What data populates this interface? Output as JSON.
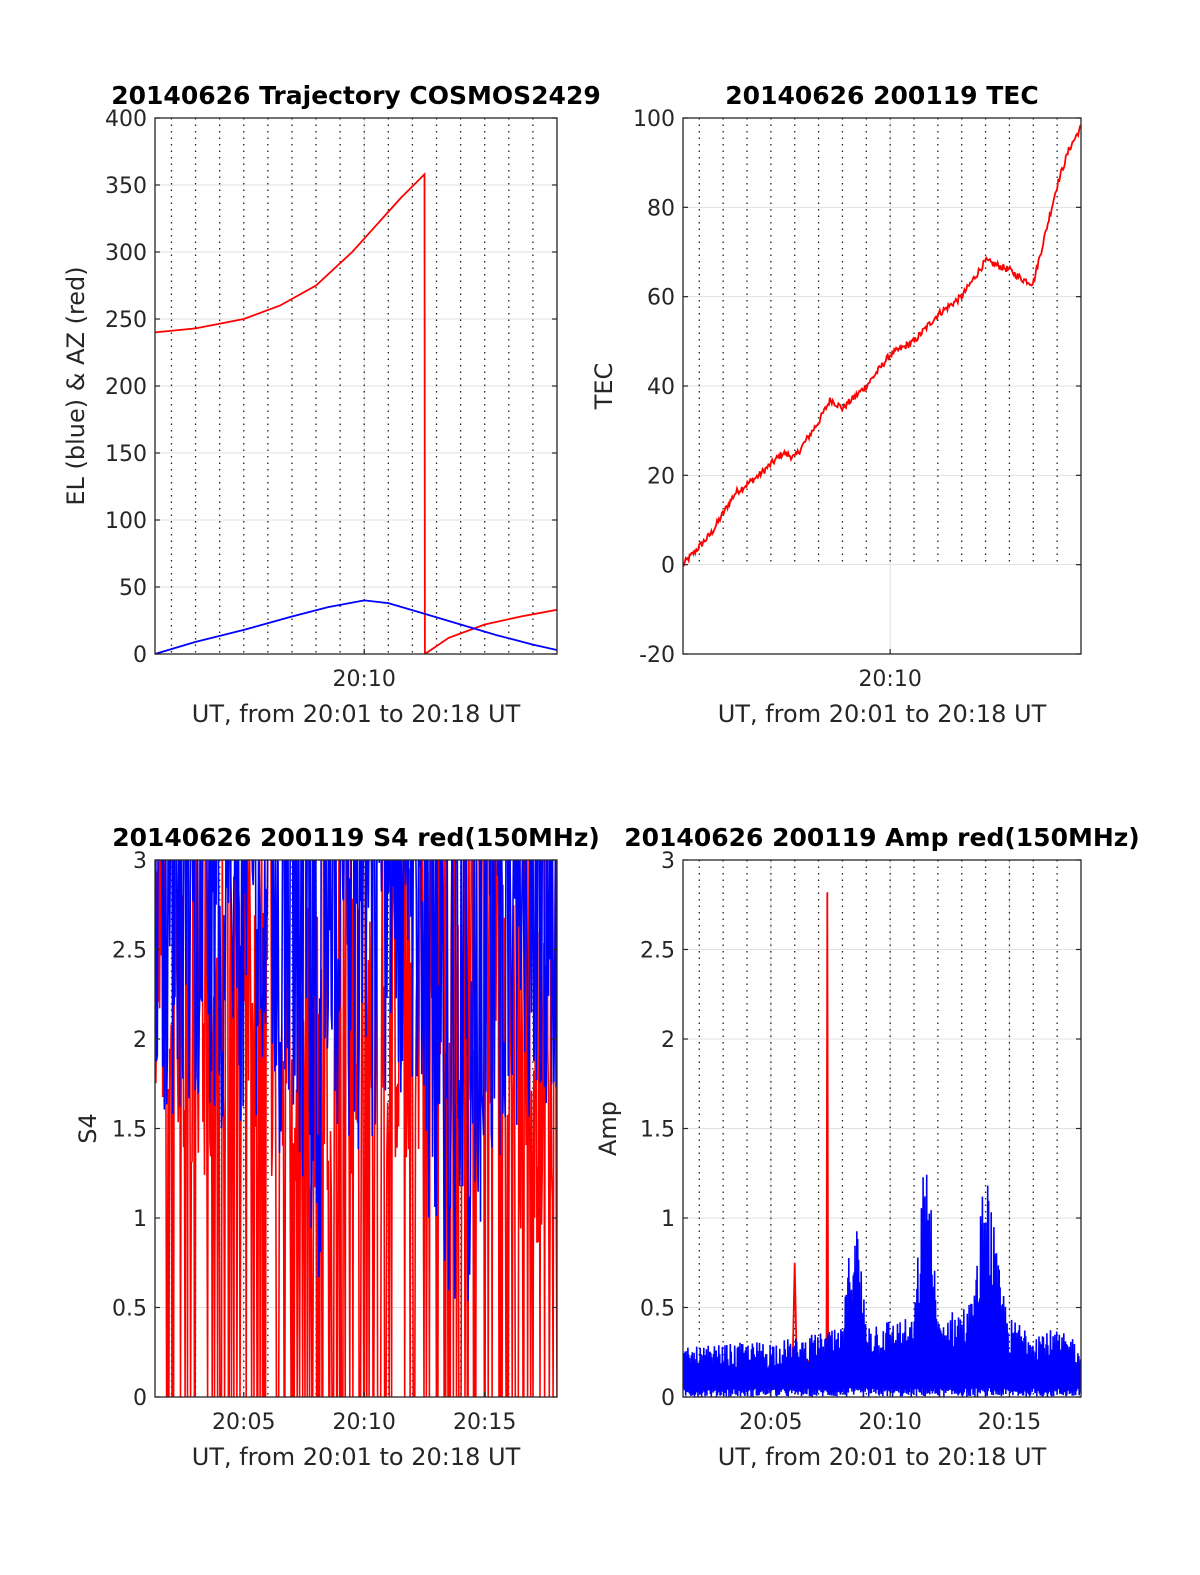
{
  "figure": {
    "background": "#ffffff"
  },
  "colors": {
    "el": "#0000ff",
    "az": "#ff0000",
    "tec": "#ff0000",
    "s4_red": "#ff0000",
    "s4_blue": "#0000ff",
    "amp_red": "#ff0000",
    "amp_blue": "#0000ff"
  },
  "chart_data": [
    {
      "id": "trajectory",
      "type": "line",
      "title": "20140626 Trajectory COSMOS2429",
      "xlabel": "UT, from 20:01 to 20:18 UT",
      "ylabel": "EL (blue) & AZ (red)",
      "xlim": [
        "20:01:19",
        "20:18:00"
      ],
      "ylim": [
        0,
        400
      ],
      "yticks": [
        0,
        50,
        100,
        150,
        200,
        250,
        300,
        350,
        400
      ],
      "xticks": [
        "20:10"
      ],
      "grid": true,
      "minor_vertical_grid": "dotted, every 1 min",
      "series": [
        {
          "key": "az",
          "x": [
            "20:01:19",
            "20:03:00",
            "20:05:00",
            "20:06:30",
            "20:08:00",
            "20:09:30",
            "20:10:30",
            "20:11:30",
            "20:12:30",
            "20:12:31",
            "20:13:30",
            "20:15:00",
            "20:16:30",
            "20:18:00"
          ],
          "values": [
            240,
            243,
            250,
            260,
            275,
            300,
            320,
            340,
            358,
            0,
            12,
            22,
            28,
            33
          ]
        },
        {
          "key": "el",
          "x": [
            "20:01:19",
            "20:03:00",
            "20:05:00",
            "20:07:00",
            "20:08:30",
            "20:10:00",
            "20:11:00",
            "20:12:30",
            "20:14:00",
            "20:15:30",
            "20:17:00",
            "20:18:00"
          ],
          "values": [
            0,
            9,
            18,
            28,
            35,
            40,
            38,
            30,
            22,
            14,
            7,
            3
          ]
        }
      ]
    },
    {
      "id": "tec",
      "type": "line",
      "title": "20140626 200119 TEC",
      "xlabel": "UT, from 20:01 to 20:18 UT",
      "ylabel": "TEC",
      "xlim": [
        "20:01:19",
        "20:18:00"
      ],
      "ylim": [
        -20,
        100
      ],
      "yticks": [
        -20,
        0,
        20,
        40,
        60,
        80,
        100
      ],
      "xticks": [
        "20:10"
      ],
      "grid": true,
      "minor_vertical_grid": "dotted, every 1 min, above 0",
      "series": [
        {
          "key": "tec",
          "x": [
            "20:01:19",
            "20:02:30",
            "20:03:30",
            "20:04:30",
            "20:05:30",
            "20:06:00",
            "20:07:00",
            "20:07:30",
            "20:08:00",
            "20:09:00",
            "20:10:00",
            "20:11:00",
            "20:12:00",
            "20:13:00",
            "20:14:00",
            "20:14:30",
            "20:15:00",
            "20:15:30",
            "20:16:00",
            "20:16:30",
            "20:17:00",
            "20:17:30",
            "20:18:00"
          ],
          "values": [
            0,
            7,
            16,
            20,
            25,
            24,
            32,
            37,
            35,
            40,
            47,
            50,
            56,
            60,
            68,
            67,
            66,
            64,
            63,
            74,
            85,
            93,
            98
          ]
        }
      ]
    },
    {
      "id": "s4",
      "type": "line",
      "title": "20140626 200119 S4 red(150MHz)",
      "xlabel": "UT, from 20:01 to 20:18 UT",
      "ylabel": "S4",
      "xlim": [
        "20:01:19",
        "20:18:00"
      ],
      "ylim": [
        0,
        3
      ],
      "yticks": [
        0,
        0.5,
        1,
        1.5,
        2,
        2.5,
        3
      ],
      "xticks": [
        "20:05",
        "20:10",
        "20:15"
      ],
      "grid": true,
      "minor_vertical_grid": "dotted, every 1 min",
      "series": [
        {
          "key": "s4_red",
          "noisy": true,
          "x": [
            "20:01:19",
            "20:04:00",
            "20:07:00",
            "20:10:00",
            "20:13:00",
            "20:15:00",
            "20:16:30",
            "20:18:00"
          ],
          "values": [
            2.4,
            2.0,
            1.9,
            2.1,
            2.2,
            2.5,
            1.8,
            1.7
          ]
        },
        {
          "key": "s4_blue",
          "noisy": true,
          "x": [
            "20:01:19",
            "20:03:00",
            "20:05:00",
            "20:07:00",
            "20:08:00",
            "20:10:00",
            "20:12:00",
            "20:13:30",
            "20:14:30",
            "20:16:00",
            "20:18:00"
          ],
          "values": [
            2.5,
            2.4,
            2.4,
            2.2,
            1.5,
            2.3,
            2.6,
            1.0,
            1.5,
            2.4,
            2.5
          ]
        }
      ]
    },
    {
      "id": "amp",
      "type": "line",
      "title": "20140626 200119 Amp red(150MHz)",
      "xlabel": "UT, from 20:01 to 20:18 UT",
      "ylabel": "Amp",
      "xlim": [
        "20:01:19",
        "20:18:00"
      ],
      "ylim": [
        0,
        3
      ],
      "yticks": [
        0,
        0.5,
        1,
        1.5,
        2,
        2.5,
        3
      ],
      "xticks": [
        "20:05",
        "20:10",
        "20:15"
      ],
      "grid": true,
      "minor_vertical_grid": "dotted, every 1 min",
      "series": [
        {
          "key": "amp_red",
          "x": [
            "20:05:55",
            "20:06:00",
            "20:06:05",
            "20:07:20",
            "20:07:22",
            "20:07:24"
          ],
          "values": [
            0.2,
            0.75,
            0.2,
            0.2,
            2.82,
            0.2
          ]
        },
        {
          "key": "amp_blue",
          "noisy": true,
          "x": [
            "20:01:19",
            "20:06:00",
            "20:08:00",
            "20:08:30",
            "20:09:00",
            "20:11:00",
            "20:11:30",
            "20:12:00",
            "20:13:30",
            "20:14:00",
            "20:14:30",
            "20:15:00",
            "20:18:00"
          ],
          "values": [
            0.25,
            0.3,
            0.35,
            1.05,
            0.4,
            0.4,
            1.4,
            0.4,
            0.5,
            1.25,
            0.7,
            0.4,
            0.3
          ]
        }
      ]
    }
  ]
}
